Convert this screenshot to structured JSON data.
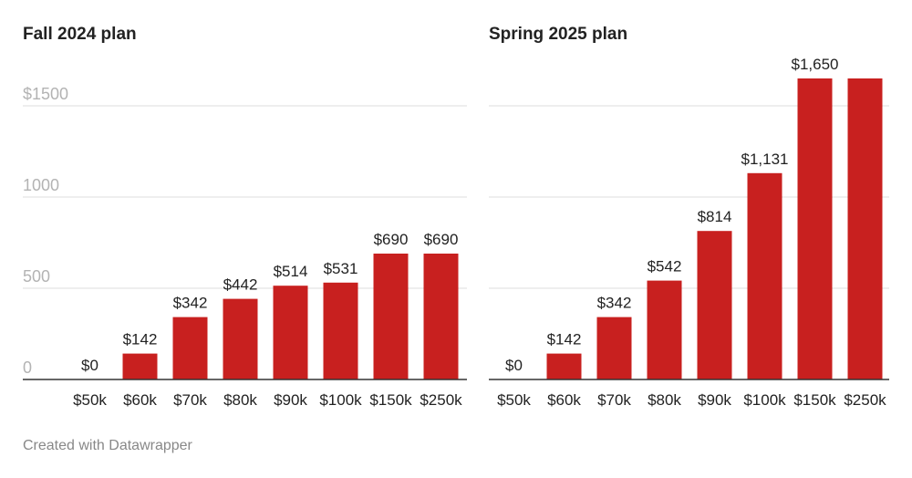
{
  "chart_data": [
    {
      "type": "bar",
      "title": "Fall 2024 plan",
      "categories": [
        "$50k",
        "$60k",
        "$70k",
        "$80k",
        "$90k",
        "$100k",
        "$150k",
        "$250k"
      ],
      "values": [
        0,
        142,
        342,
        442,
        514,
        531,
        690,
        690
      ],
      "value_labels": [
        "$0",
        "$142",
        "$342",
        "$442",
        "$514",
        "$531",
        "$690",
        "$690"
      ],
      "yticks": [
        0,
        500,
        1000,
        1500
      ],
      "ytick_labels": [
        "0",
        "500",
        "1000",
        "$1500"
      ],
      "ylim": [
        0,
        1650
      ],
      "grid": true,
      "bar_color": "#c8201f"
    },
    {
      "type": "bar",
      "title": "Spring 2025 plan",
      "categories": [
        "$50k",
        "$60k",
        "$70k",
        "$80k",
        "$90k",
        "$100k",
        "$150k",
        "$250k"
      ],
      "values": [
        0,
        142,
        342,
        542,
        814,
        1131,
        1650,
        1650
      ],
      "value_labels": [
        "$0",
        "$142",
        "$342",
        "$542",
        "$814",
        "$1,131",
        "$1,650",
        ""
      ],
      "yticks": [
        0,
        500,
        1000,
        1500
      ],
      "ylim": [
        0,
        1650
      ],
      "grid": true,
      "bar_color": "#c8201f"
    }
  ],
  "footer": {
    "credit": "Created with Datawrapper"
  }
}
